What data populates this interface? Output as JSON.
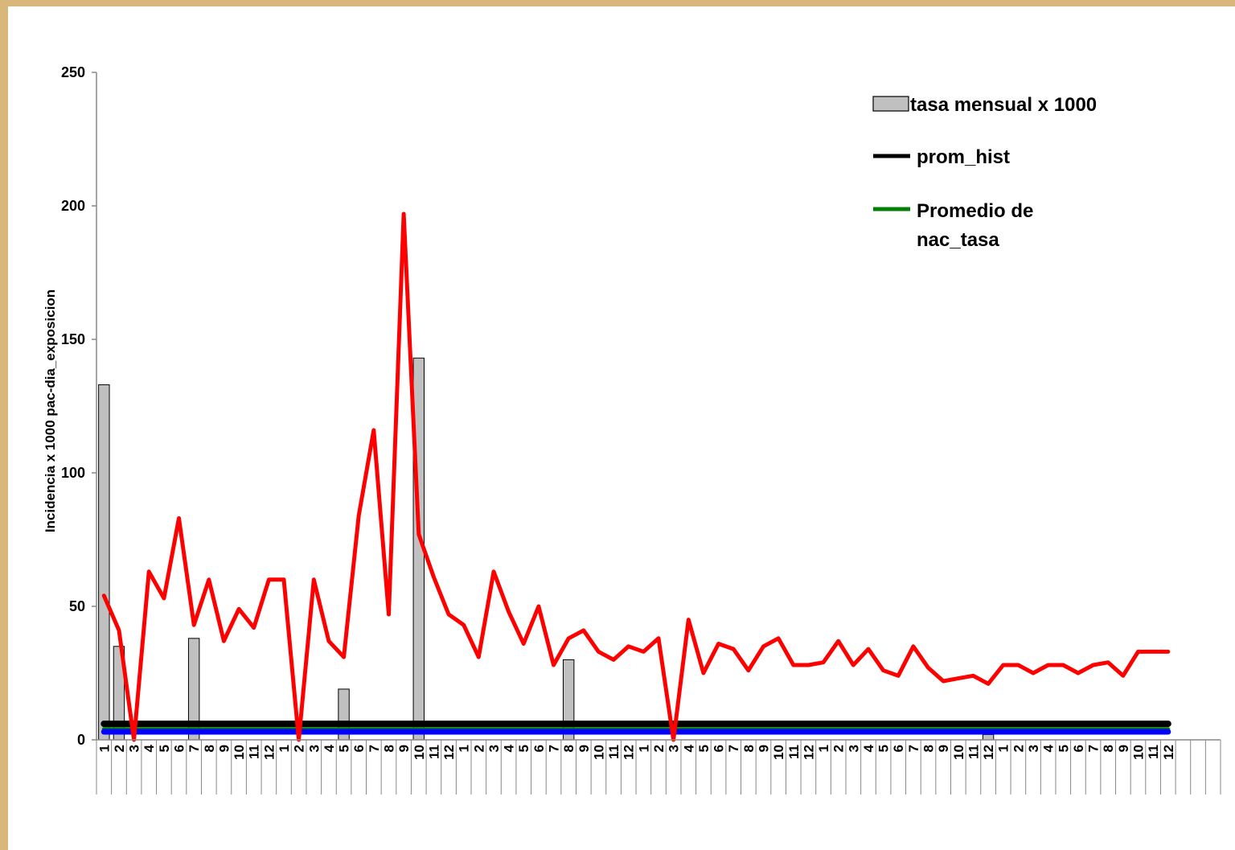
{
  "chart_data": {
    "type": "bar",
    "title": "",
    "xlabel": "",
    "ylabel": "Incidencia x 1000 pac-dia_exposicion",
    "ylim": [
      0,
      250
    ],
    "yticks": [
      0,
      50,
      100,
      150,
      200,
      250
    ],
    "categories": [
      "1",
      "2",
      "3",
      "4",
      "5",
      "6",
      "7",
      "8",
      "9",
      "10",
      "11",
      "12",
      "1",
      "2",
      "3",
      "4",
      "5",
      "6",
      "7",
      "8",
      "9",
      "10",
      "11",
      "12",
      "1",
      "2",
      "3",
      "4",
      "5",
      "6",
      "7",
      "8",
      "9",
      "10",
      "11",
      "12",
      "1",
      "2",
      "3",
      "4",
      "5",
      "6",
      "7",
      "8",
      "9",
      "10",
      "11",
      "12",
      "1",
      "2",
      "3",
      "4",
      "5",
      "6",
      "7",
      "8",
      "9",
      "10",
      "11",
      "12",
      "1",
      "2",
      "3",
      "4",
      "5",
      "6",
      "7",
      "8",
      "9",
      "10",
      "11",
      "12",
      "",
      "",
      ""
    ],
    "legend_position": "top-right",
    "grid": false,
    "colors": {
      "bars": "#c0c0c0",
      "bar_stroke": "#000000",
      "red_line": "#ff0000",
      "prom_hist": "#000000",
      "nac_tasa": "#008000",
      "blue_line": "#0000ff"
    },
    "series": [
      {
        "name": "tasa mensual x 1000",
        "kind": "bar",
        "values": [
          133,
          35,
          0,
          0,
          0,
          0,
          38,
          0,
          0,
          0,
          0,
          0,
          0,
          0,
          0,
          0,
          19,
          0,
          0,
          0,
          0,
          143,
          0,
          0,
          0,
          0,
          0,
          0,
          0,
          0,
          0,
          30,
          0,
          0,
          0,
          0,
          0,
          0,
          0,
          0,
          0,
          0,
          0,
          0,
          0,
          0,
          0,
          0,
          0,
          0,
          0,
          0,
          0,
          0,
          0,
          0,
          0,
          0,
          0,
          2,
          0,
          0,
          0,
          0,
          0,
          0,
          0,
          0,
          0,
          0,
          0,
          0,
          null,
          null,
          null
        ]
      },
      {
        "name": "prom_hist",
        "kind": "line",
        "values": [
          6,
          6,
          6,
          6,
          6,
          6,
          6,
          6,
          6,
          6,
          6,
          6,
          6,
          6,
          6,
          6,
          6,
          6,
          6,
          6,
          6,
          6,
          6,
          6,
          6,
          6,
          6,
          6,
          6,
          6,
          6,
          6,
          6,
          6,
          6,
          6,
          6,
          6,
          6,
          6,
          6,
          6,
          6,
          6,
          6,
          6,
          6,
          6,
          6,
          6,
          6,
          6,
          6,
          6,
          6,
          6,
          6,
          6,
          6,
          6,
          6,
          6,
          6,
          6,
          6,
          6,
          6,
          6,
          6,
          6,
          6,
          6,
          null,
          null,
          null
        ]
      },
      {
        "name": "Promedio de nac_tasa",
        "kind": "line",
        "values": [
          4,
          4,
          4,
          4,
          4,
          4,
          4,
          4,
          4,
          4,
          4,
          4,
          4,
          4,
          4,
          4,
          4,
          4,
          4,
          4,
          4,
          4,
          4,
          4,
          4,
          4,
          4,
          4,
          4,
          4,
          4,
          4,
          4,
          4,
          4,
          4,
          4,
          4,
          4,
          4,
          4,
          4,
          4,
          4,
          4,
          4,
          4,
          4,
          4,
          4,
          4,
          4,
          4,
          4,
          4,
          4,
          4,
          4,
          4,
          4,
          4,
          4,
          4,
          4,
          4,
          4,
          4,
          4,
          4,
          4,
          4,
          4,
          null,
          null,
          null
        ]
      },
      {
        "kind": "line",
        "values": [
          3,
          3,
          3,
          3,
          3,
          3,
          3,
          3,
          3,
          3,
          3,
          3,
          3,
          3,
          3,
          3,
          3,
          3,
          3,
          3,
          3,
          3,
          3,
          3,
          3,
          3,
          3,
          3,
          3,
          3,
          3,
          3,
          3,
          3,
          3,
          3,
          3,
          3,
          3,
          3,
          3,
          3,
          3,
          3,
          3,
          3,
          3,
          3,
          3,
          3,
          3,
          3,
          3,
          3,
          3,
          3,
          3,
          3,
          3,
          3,
          3,
          3,
          3,
          3,
          3,
          3,
          3,
          3,
          3,
          3,
          3,
          3,
          null,
          null,
          null
        ]
      },
      {
        "kind": "line",
        "values": [
          54,
          41,
          0,
          63,
          53,
          83,
          43,
          60,
          37,
          49,
          42,
          60,
          60,
          0,
          60,
          37,
          31,
          84,
          116,
          47,
          197,
          77,
          61,
          47,
          43,
          31,
          63,
          48,
          36,
          50,
          28,
          38,
          41,
          33,
          30,
          35,
          33,
          38,
          0,
          45,
          25,
          36,
          34,
          26,
          35,
          38,
          28,
          28,
          29,
          37,
          28,
          34,
          26,
          24,
          35,
          27,
          22,
          23,
          24,
          21,
          28,
          28,
          25,
          28,
          28,
          25,
          28,
          29,
          24,
          33,
          33,
          33,
          null,
          null,
          null
        ]
      }
    ]
  }
}
